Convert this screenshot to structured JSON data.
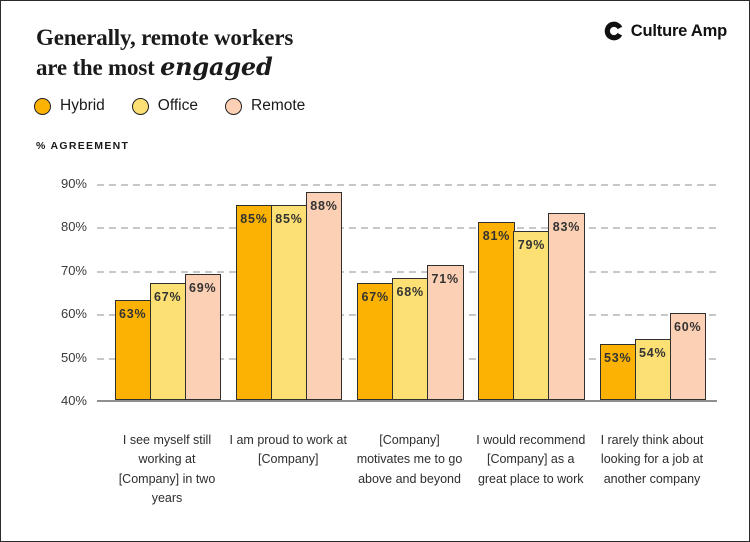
{
  "header": {
    "title_line1": "Generally, remote workers",
    "title_line2_prefix": "are the most ",
    "title_line2_emphasis": "engaged",
    "logo_text": "Culture Amp"
  },
  "chart_data": {
    "type": "bar",
    "title": "Generally, remote workers are the most engaged",
    "axis_label": "% AGREEMENT",
    "ylabel": "% AGREEMENT",
    "ylim": [
      40,
      90
    ],
    "yticks": [
      90,
      80,
      70,
      60,
      50,
      40
    ],
    "ytick_suffix": "%",
    "value_suffix": "%",
    "grid": "dashed-horizontal",
    "legend_position": "top-left",
    "categories": [
      "I see myself still working at [Company] in two years",
      "I am proud to work at [Company]",
      "[Company] motivates me to go above and beyond",
      "I would recommend [Company] as a great place to work",
      "I rarely think about looking for a job at another company"
    ],
    "series": [
      {
        "name": "Hybrid",
        "color": "#FCB202",
        "values": [
          63,
          85,
          67,
          81,
          53
        ]
      },
      {
        "name": "Office",
        "color": "#FCE074",
        "values": [
          67,
          85,
          68,
          79,
          54
        ]
      },
      {
        "name": "Remote",
        "color": "#FCD0B4",
        "values": [
          69,
          88,
          71,
          83,
          60
        ]
      }
    ]
  },
  "colors": {
    "bar_border": "#2f2f2f",
    "gridline": "#c7c7c7",
    "baseline": "#8f8f8f",
    "text": "#1a1a1a",
    "background": "#ffffff"
  }
}
